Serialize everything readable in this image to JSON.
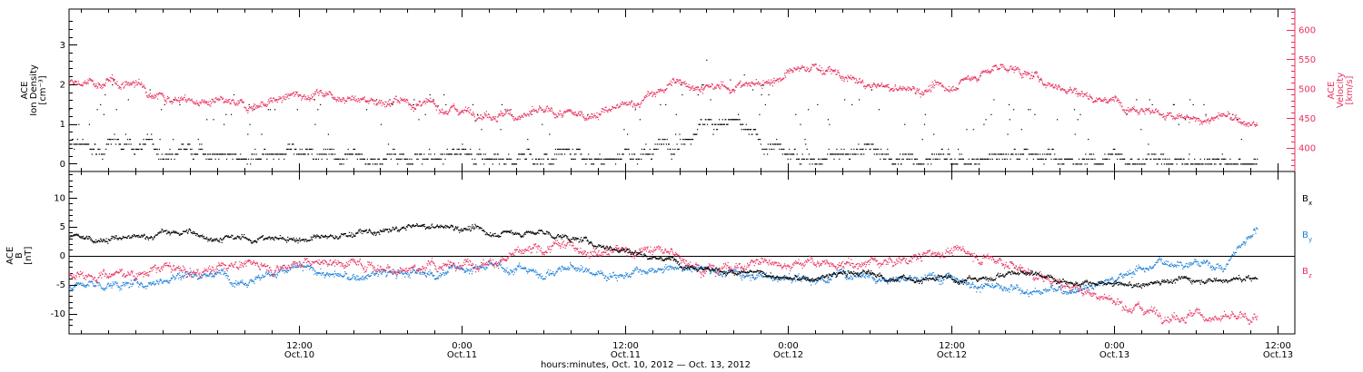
{
  "chart_data": [
    {
      "type": "scatter",
      "panel": "top",
      "ylabel_left": [
        "ACE",
        "Ion Density",
        "[cm⁻³]"
      ],
      "ylabel_right": [
        "ACE",
        "Velocity",
        "[km/s]"
      ],
      "ylim_left": [
        -0.2,
        3.9
      ],
      "yticks_left": [
        "0",
        "1",
        "2",
        "3"
      ],
      "ylim_right": [
        360,
        635
      ],
      "yticks_right": [
        "400",
        "450",
        "500",
        "550",
        "600"
      ],
      "colors": {
        "density": "#000000",
        "velocity": "#e8315e"
      },
      "series": [
        {
          "axis": "left",
          "anchors_x_hours": [
            0,
            2,
            4,
            6,
            8,
            10,
            12,
            14,
            16,
            18,
            20,
            22,
            24,
            26,
            28,
            30,
            32,
            34,
            36,
            38,
            40,
            42,
            44,
            46,
            48,
            50,
            52,
            54,
            56,
            58,
            60,
            62,
            64,
            66,
            68,
            70,
            72,
            74,
            76,
            78,
            80,
            82,
            84
          ],
          "anchors_y": [
            0.5,
            0.4,
            0.3,
            0.25,
            0.2,
            0.2,
            0.3,
            0.3,
            0.1,
            0.1,
            0.1,
            0.2,
            0.3,
            0.2,
            0.1,
            0.2,
            0.3,
            0.2,
            0.3,
            0.4,
            0.8,
            1.2,
            1.0,
            0.5,
            0.1,
            0.1,
            0.1,
            0.3,
            0.1,
            0.1,
            0.05,
            0.1,
            0.3,
            0.2,
            0.1,
            0.1,
            0.1,
            0.05,
            0.05,
            0.05,
            0.05,
            0.05,
            0.05
          ]
        },
        {
          "axis": "right",
          "anchors_x_hours": [
            0,
            2,
            4,
            6,
            8,
            10,
            12,
            14,
            16,
            18,
            20,
            22,
            24,
            26,
            28,
            30,
            32,
            34,
            36,
            38,
            40,
            42,
            44,
            46,
            48,
            50,
            52,
            54,
            56,
            58,
            60,
            62,
            64,
            66,
            68,
            70,
            72,
            74,
            76,
            78,
            80,
            82,
            84
          ],
          "anchors_y": [
            510,
            490,
            480,
            475,
            470,
            480,
            490,
            495,
            485,
            480,
            478,
            470,
            465,
            460,
            455,
            460,
            455,
            460,
            470,
            490,
            515,
            500,
            505,
            510,
            525,
            540,
            520,
            505,
            500,
            500,
            505,
            525,
            540,
            520,
            505,
            490,
            480,
            470,
            455,
            445,
            455,
            440,
            430
          ]
        }
      ]
    },
    {
      "type": "scatter",
      "panel": "bottom",
      "ylabel": [
        "ACE",
        "B",
        "[nT]"
      ],
      "ylim": [
        -13.5,
        14.5
      ],
      "yticks": [
        "-10",
        "-5",
        "0",
        "5",
        "10"
      ],
      "zero_line": true,
      "colors": {
        "Bx": "#000000",
        "By": "#1a7fd8",
        "Bz": "#e8315e"
      },
      "series": [
        {
          "name": "Bx",
          "anchors_x_hours": [
            0,
            2,
            4,
            6,
            8,
            10,
            12,
            14,
            16,
            18,
            20,
            22,
            24,
            26,
            28,
            30,
            32,
            34,
            36,
            38,
            40,
            42,
            44,
            46,
            48,
            50,
            52,
            54,
            56,
            58,
            60,
            62,
            64,
            66,
            68,
            70,
            72,
            74,
            76,
            78,
            80,
            82,
            84
          ],
          "anchors_y": [
            3,
            4,
            4,
            3,
            3,
            3,
            3,
            3,
            4,
            4,
            5,
            5,
            5,
            4,
            4,
            4,
            3,
            2,
            1,
            0,
            -1,
            -2,
            -3,
            -3,
            -4,
            -4,
            -3,
            -3,
            -4,
            -4,
            -4,
            -4,
            -3,
            -3,
            -4,
            -5,
            -5,
            -5,
            -4,
            -4,
            -4,
            -4,
            -4
          ]
        },
        {
          "name": "By",
          "anchors_x_hours": [
            0,
            2,
            4,
            6,
            8,
            10,
            12,
            14,
            16,
            18,
            20,
            22,
            24,
            26,
            28,
            30,
            32,
            34,
            36,
            38,
            40,
            42,
            44,
            46,
            48,
            50,
            52,
            54,
            56,
            58,
            60,
            62,
            64,
            66,
            68,
            70,
            72,
            74,
            76,
            78,
            80,
            82,
            84
          ],
          "anchors_y": [
            -5,
            -4,
            -3,
            -3,
            -4,
            -3,
            -2,
            -3,
            -4,
            -3,
            -3,
            -3,
            -2,
            -2,
            -2,
            -3,
            -2,
            -3,
            -3,
            -3,
            -2,
            -2,
            -3,
            -3,
            -4,
            -4,
            -3,
            -3,
            -4,
            -4,
            -3,
            -5,
            -6,
            -6,
            -6,
            -5,
            -4,
            -2,
            -1,
            -1,
            -2,
            4,
            8
          ]
        },
        {
          "name": "Bz",
          "anchors_x_hours": [
            0,
            2,
            4,
            6,
            8,
            10,
            12,
            14,
            16,
            18,
            20,
            22,
            24,
            26,
            28,
            30,
            32,
            34,
            36,
            38,
            40,
            42,
            44,
            46,
            48,
            50,
            52,
            54,
            56,
            58,
            60,
            62,
            64,
            66,
            68,
            70,
            72,
            74,
            76,
            78,
            80,
            82,
            84
          ],
          "anchors_y": [
            -3,
            -2,
            -3,
            -2,
            -1,
            -2,
            -1,
            -1,
            -1,
            -2,
            -2,
            -2,
            -1,
            -1,
            0,
            1,
            2,
            1,
            1,
            1,
            0,
            -2,
            -2,
            -1,
            -1,
            -1,
            -2,
            -1,
            -1,
            0,
            1,
            0,
            -1,
            -3,
            -5,
            -6,
            -8,
            -9,
            -10,
            -10,
            -11,
            -11,
            -9
          ]
        }
      ],
      "legend": [
        {
          "label": "B",
          "sub": "x",
          "color": "#000000"
        },
        {
          "label": "B",
          "sub": "y",
          "color": "#1a7fd8"
        },
        {
          "label": "B",
          "sub": "z",
          "color": "#e8315e"
        }
      ]
    }
  ],
  "x_axis": {
    "range_hours": [
      -4.9,
      85.3
    ],
    "ticks": [
      {
        "hour": 12,
        "time": "12:00",
        "date": "Oct.10"
      },
      {
        "hour": 24,
        "time": "0:00",
        "date": "Oct.11"
      },
      {
        "hour": 36,
        "time": "12:00",
        "date": "Oct.11"
      },
      {
        "hour": 48,
        "time": "0:00",
        "date": "Oct.12"
      },
      {
        "hour": 60,
        "time": "12:00",
        "date": "Oct.12"
      },
      {
        "hour": 72,
        "time": "0:00",
        "date": "Oct.13"
      },
      {
        "hour": 84,
        "time": "12:00",
        "date": "Oct.13"
      }
    ],
    "data_end_hour": 82.5,
    "xlabel": "hours:minutes, Oct. 10, 2012 — Oct. 13, 2012"
  }
}
